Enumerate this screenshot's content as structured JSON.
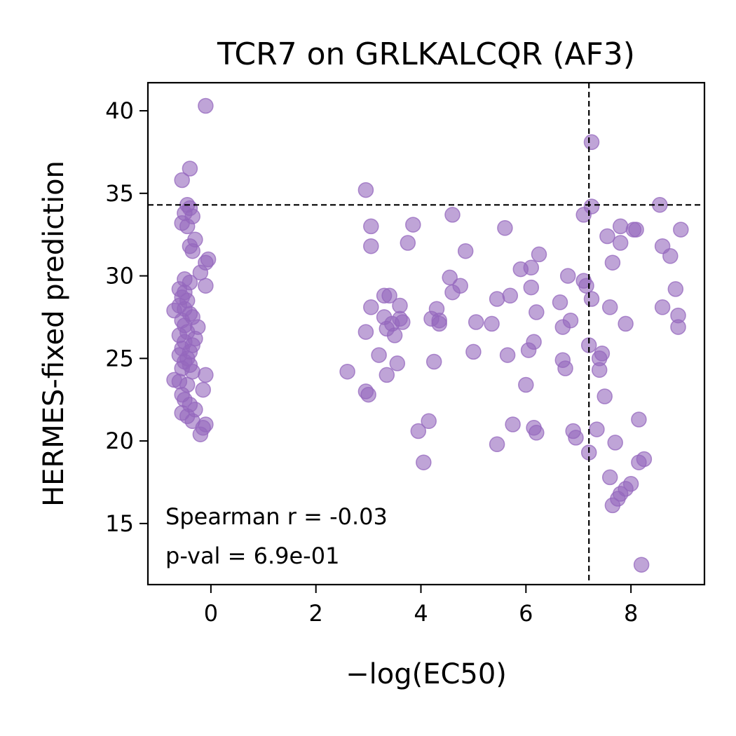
{
  "chart_data": {
    "type": "scatter",
    "title": "TCR7 on GRLKALCQR (AF3)",
    "xlabel": "−log(EC50)",
    "ylabel": "HERMES-fixed prediction",
    "xlim": [
      -1.2,
      9.4
    ],
    "ylim": [
      11.3,
      41.7
    ],
    "xticks": [
      0,
      2,
      4,
      6,
      8
    ],
    "yticks": [
      15,
      20,
      25,
      30,
      35,
      40
    ],
    "grid": false,
    "point_color": "#9467bd",
    "point_alpha": 0.6,
    "threshold_lines": {
      "x": 7.2,
      "y": 34.3,
      "style": "dashed",
      "color": "#000000"
    },
    "annotation": [
      "Spearman r = -0.03",
      "p-val = 6.9e-01"
    ],
    "points": [
      [
        -0.1,
        40.3
      ],
      [
        -0.4,
        36.5
      ],
      [
        -0.55,
        35.8
      ],
      [
        -0.45,
        34.3
      ],
      [
        -0.4,
        34.1
      ],
      [
        -0.5,
        33.8
      ],
      [
        -0.35,
        33.6
      ],
      [
        -0.55,
        33.2
      ],
      [
        -0.45,
        33.0
      ],
      [
        -0.3,
        32.2
      ],
      [
        -0.4,
        31.8
      ],
      [
        -0.35,
        31.5
      ],
      [
        -0.05,
        31.0
      ],
      [
        -0.1,
        30.8
      ],
      [
        -0.2,
        30.2
      ],
      [
        -0.5,
        29.8
      ],
      [
        -0.4,
        29.6
      ],
      [
        -0.1,
        29.4
      ],
      [
        -0.6,
        29.2
      ],
      [
        -0.5,
        29.0
      ],
      [
        -0.55,
        28.7
      ],
      [
        -0.45,
        28.5
      ],
      [
        -0.6,
        28.2
      ],
      [
        -0.5,
        28.0
      ],
      [
        -0.7,
        27.9
      ],
      [
        -0.4,
        27.7
      ],
      [
        -0.35,
        27.5
      ],
      [
        -0.55,
        27.3
      ],
      [
        -0.5,
        27.0
      ],
      [
        -0.25,
        26.9
      ],
      [
        -0.45,
        26.6
      ],
      [
        -0.6,
        26.4
      ],
      [
        -0.3,
        26.2
      ],
      [
        -0.5,
        26.0
      ],
      [
        -0.35,
        25.8
      ],
      [
        -0.55,
        25.6
      ],
      [
        -0.4,
        25.4
      ],
      [
        -0.6,
        25.2
      ],
      [
        -0.45,
        25.0
      ],
      [
        -0.5,
        24.8
      ],
      [
        -0.4,
        24.6
      ],
      [
        -0.55,
        24.4
      ],
      [
        -0.35,
        24.2
      ],
      [
        -0.1,
        24.0
      ],
      [
        -0.7,
        23.7
      ],
      [
        -0.6,
        23.6
      ],
      [
        -0.45,
        23.4
      ],
      [
        -0.15,
        23.1
      ],
      [
        -0.55,
        22.8
      ],
      [
        -0.5,
        22.5
      ],
      [
        -0.4,
        22.2
      ],
      [
        -0.3,
        21.9
      ],
      [
        -0.55,
        21.7
      ],
      [
        -0.45,
        21.5
      ],
      [
        -0.35,
        21.2
      ],
      [
        -0.1,
        21.0
      ],
      [
        -0.15,
        20.8
      ],
      [
        -0.2,
        20.4
      ],
      [
        2.6,
        24.2
      ],
      [
        2.95,
        35.2
      ],
      [
        2.95,
        26.6
      ],
      [
        2.95,
        23.0
      ],
      [
        3.0,
        22.8
      ],
      [
        3.05,
        28.1
      ],
      [
        3.05,
        33.0
      ],
      [
        3.05,
        31.8
      ],
      [
        3.2,
        25.2
      ],
      [
        3.3,
        28.8
      ],
      [
        3.3,
        27.5
      ],
      [
        3.35,
        26.8
      ],
      [
        3.35,
        24.0
      ],
      [
        3.4,
        28.8
      ],
      [
        3.45,
        27.1
      ],
      [
        3.5,
        26.4
      ],
      [
        3.55,
        24.7
      ],
      [
        3.6,
        28.2
      ],
      [
        3.6,
        27.4
      ],
      [
        3.65,
        27.2
      ],
      [
        3.75,
        32.0
      ],
      [
        3.85,
        33.1
      ],
      [
        3.95,
        20.6
      ],
      [
        4.05,
        18.7
      ],
      [
        4.15,
        21.2
      ],
      [
        4.2,
        27.4
      ],
      [
        4.25,
        24.8
      ],
      [
        4.3,
        28.0
      ],
      [
        4.35,
        27.3
      ],
      [
        4.35,
        27.1
      ],
      [
        4.55,
        29.9
      ],
      [
        4.6,
        29.0
      ],
      [
        4.6,
        33.7
      ],
      [
        4.75,
        29.4
      ],
      [
        4.85,
        31.5
      ],
      [
        5.0,
        25.4
      ],
      [
        5.05,
        27.2
      ],
      [
        5.35,
        27.1
      ],
      [
        5.45,
        28.6
      ],
      [
        5.45,
        19.8
      ],
      [
        5.6,
        32.9
      ],
      [
        5.65,
        25.2
      ],
      [
        5.7,
        28.8
      ],
      [
        5.75,
        21.0
      ],
      [
        5.9,
        30.4
      ],
      [
        6.0,
        23.4
      ],
      [
        6.05,
        25.5
      ],
      [
        6.1,
        30.5
      ],
      [
        6.1,
        29.3
      ],
      [
        6.15,
        26.0
      ],
      [
        6.15,
        20.8
      ],
      [
        6.2,
        20.5
      ],
      [
        6.2,
        27.8
      ],
      [
        6.25,
        31.3
      ],
      [
        6.65,
        28.4
      ],
      [
        6.7,
        26.9
      ],
      [
        6.7,
        24.9
      ],
      [
        6.75,
        24.4
      ],
      [
        6.8,
        30.0
      ],
      [
        6.85,
        27.3
      ],
      [
        6.9,
        20.6
      ],
      [
        6.95,
        20.2
      ],
      [
        7.1,
        33.7
      ],
      [
        7.1,
        29.7
      ],
      [
        7.15,
        29.4
      ],
      [
        7.2,
        19.3
      ],
      [
        7.2,
        25.8
      ],
      [
        7.25,
        38.1
      ],
      [
        7.25,
        34.2
      ],
      [
        7.25,
        28.6
      ],
      [
        7.35,
        20.7
      ],
      [
        7.4,
        25.0
      ],
      [
        7.4,
        24.3
      ],
      [
        7.45,
        25.3
      ],
      [
        7.5,
        22.7
      ],
      [
        7.55,
        32.4
      ],
      [
        7.6,
        28.1
      ],
      [
        7.6,
        17.8
      ],
      [
        7.65,
        30.8
      ],
      [
        7.65,
        16.1
      ],
      [
        7.7,
        19.9
      ],
      [
        7.75,
        16.5
      ],
      [
        7.8,
        16.8
      ],
      [
        7.8,
        33.0
      ],
      [
        7.8,
        32.0
      ],
      [
        7.9,
        27.1
      ],
      [
        7.9,
        17.1
      ],
      [
        8.0,
        17.4
      ],
      [
        8.05,
        32.8
      ],
      [
        8.1,
        32.8
      ],
      [
        8.15,
        18.7
      ],
      [
        8.15,
        21.3
      ],
      [
        8.2,
        12.5
      ],
      [
        8.25,
        18.9
      ],
      [
        8.55,
        34.3
      ],
      [
        8.6,
        31.8
      ],
      [
        8.6,
        28.1
      ],
      [
        8.75,
        31.2
      ],
      [
        8.85,
        29.2
      ],
      [
        8.9,
        27.6
      ],
      [
        8.9,
        26.9
      ],
      [
        8.95,
        32.8
      ]
    ]
  }
}
